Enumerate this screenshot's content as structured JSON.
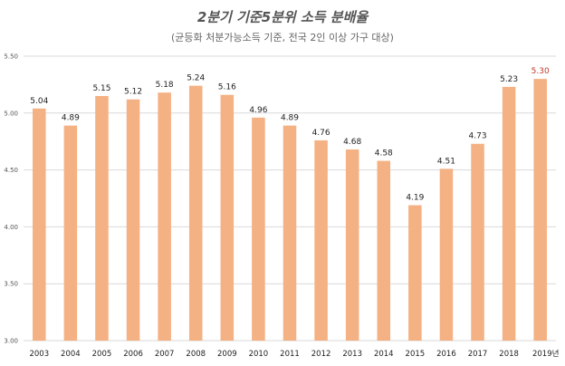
{
  "chart_data": {
    "type": "bar",
    "title": "2분기 기준5분위 소득 분배율",
    "subtitle": "(균등화 처분가능소득 기준, 전국 2인 이상 가구 대상)",
    "categories": [
      "2003",
      "2004",
      "2005",
      "2006",
      "2007",
      "2008",
      "2009",
      "2010",
      "2011",
      "2012",
      "2013",
      "2014",
      "2015",
      "2016",
      "2017",
      "2018",
      "2019년"
    ],
    "values": [
      5.04,
      4.89,
      5.15,
      5.12,
      5.18,
      5.24,
      5.16,
      4.96,
      4.89,
      4.76,
      4.68,
      4.58,
      4.19,
      4.51,
      4.73,
      5.23,
      5.3
    ],
    "value_labels": [
      "5.04",
      "4.89",
      "5.15",
      "5.12",
      "5.18",
      "5.24",
      "5.16",
      "4.96",
      "4.89",
      "4.76",
      "4.68",
      "4.58",
      "4.19",
      "4.51",
      "4.73",
      "5.23",
      "5.30"
    ],
    "ylim": [
      3.0,
      5.5
    ],
    "yticks": [
      3.0,
      3.5,
      4.0,
      4.5,
      5.0,
      5.5
    ],
    "ytick_labels": [
      "3.00",
      "3.50",
      "4.00",
      "4.50",
      "5.00",
      "5.50"
    ],
    "grid": true,
    "bar_color": "#f4b183",
    "last_bar_color": "#f4b183",
    "highlight_label_color": "#c0392b",
    "grid_color": "#d9d9d9"
  }
}
